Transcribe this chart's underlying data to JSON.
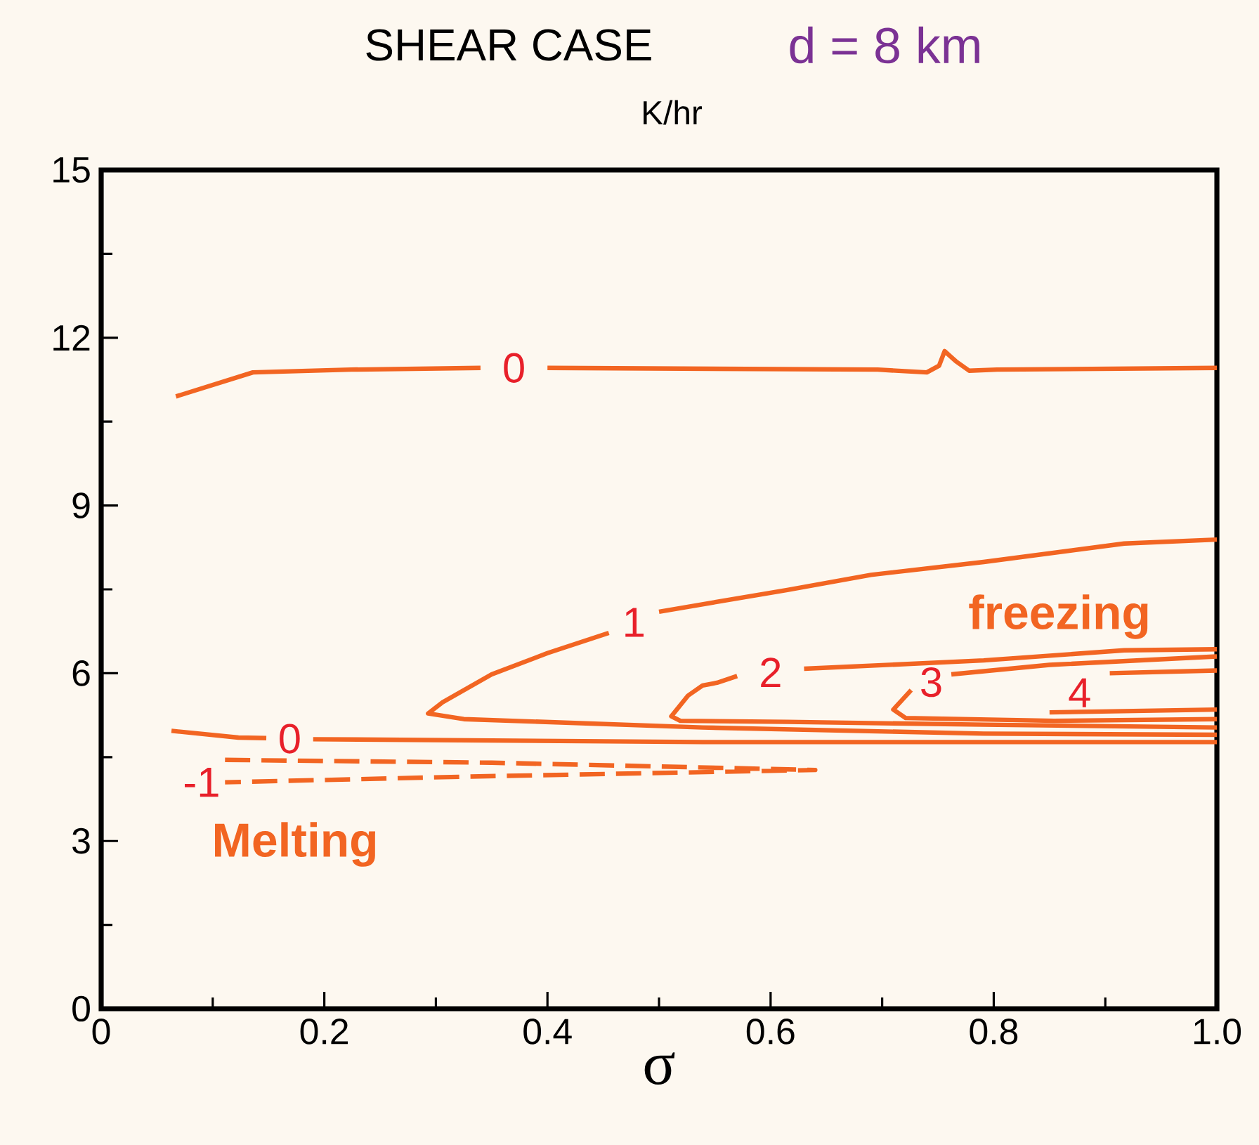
{
  "chart_data": {
    "type": "line",
    "title": "SHEAR CASE",
    "subtitle": "K/hr",
    "xlabel": "σ",
    "xlim": [
      0,
      1
    ],
    "ylim": [
      0,
      15
    ],
    "xticks": [
      0,
      0.2,
      0.4,
      0.6,
      0.8,
      {
        "value": 1,
        "label": "1.0"
      },
      {
        "value": 0.1,
        "label": null
      },
      {
        "value": 0.3,
        "label": null
      },
      {
        "value": 0.5,
        "label": null
      },
      {
        "value": 0.7,
        "label": null
      },
      {
        "value": 0.9,
        "label": null
      }
    ],
    "yticks": [
      0,
      3,
      6,
      9,
      12,
      15,
      {
        "value": 1.5,
        "label": null
      },
      {
        "value": 4.5,
        "label": null
      },
      {
        "value": 7.5,
        "label": null
      },
      {
        "value": 10.5,
        "label": null
      },
      {
        "value": 13.5,
        "label": null
      }
    ],
    "grid": false,
    "marker": "none",
    "series": [
      {
        "name": "0",
        "color": "#f26522",
        "line_style": "solid",
        "x": [
          0.067,
          0.136,
          0.224,
          0.34,
          null,
          0.4,
          0.696,
          0.74,
          0.751,
          0.756,
          0.766,
          0.778,
          0.803,
          1.0
        ],
        "values": [
          10.95,
          11.38,
          11.43,
          11.46,
          null,
          11.46,
          11.43,
          11.38,
          11.5,
          11.76,
          11.58,
          11.41,
          11.43,
          11.46
        ]
      },
      {
        "name": "1",
        "color": "#f26522",
        "line_style": "solid",
        "x": [
          1.0,
          0.917,
          0.791,
          0.69,
          0.615,
          0.5,
          null,
          0.455,
          0.4,
          0.35,
          0.306,
          0.293,
          0.325,
          0.539,
          0.791,
          1.0
        ],
        "values": [
          8.39,
          8.32,
          7.99,
          7.76,
          7.49,
          7.1,
          null,
          6.72,
          6.36,
          5.98,
          5.48,
          5.28,
          5.18,
          5.03,
          4.92,
          4.9
        ]
      },
      {
        "name": "2",
        "color": "#f26522",
        "line_style": "solid",
        "x": [
          1.0,
          0.917,
          0.791,
          0.63,
          null,
          0.57,
          0.552,
          0.539,
          0.526,
          0.511,
          0.519,
          0.615,
          0.791,
          1.0
        ],
        "values": [
          6.43,
          6.41,
          6.23,
          6.08,
          null,
          5.95,
          5.83,
          5.78,
          5.6,
          5.23,
          5.15,
          5.13,
          5.08,
          5.03
        ]
      },
      {
        "name": "3",
        "color": "#f26522",
        "line_style": "solid",
        "x": [
          1.0,
          0.85,
          0.762,
          null,
          0.726,
          0.71,
          0.721,
          0.854,
          1.0
        ],
        "values": [
          6.3,
          6.15,
          5.98,
          null,
          5.7,
          5.35,
          5.2,
          5.15,
          5.18
        ]
      },
      {
        "name": "4",
        "color": "#f26522",
        "line_style": "solid",
        "x": [
          1.0,
          0.904,
          null,
          0.85,
          1.0
        ],
        "values": [
          6.05,
          6.0,
          null,
          5.3,
          5.35
        ]
      },
      {
        "name": "0",
        "color": "#f26522",
        "line_style": "solid",
        "x": [
          0.063,
          0.123,
          0.148,
          null,
          0.19,
          0.539,
          1.0
        ],
        "values": [
          4.97,
          4.85,
          4.84,
          null,
          4.82,
          4.77,
          4.77
        ]
      },
      {
        "name": "-1",
        "color": "#f26522",
        "line_style": "dashed",
        "x": [
          0.111,
          0.35,
          0.64,
          0.325,
          0.111
        ],
        "values": [
          4.45,
          4.4,
          4.27,
          4.15,
          4.05
        ]
      }
    ],
    "annotations": [
      "d = 8 km",
      "freezing",
      "Melting"
    ]
  }
}
